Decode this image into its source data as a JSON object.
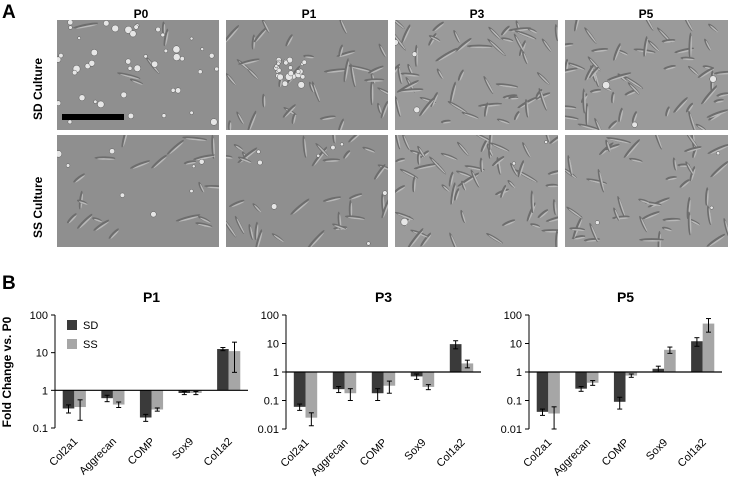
{
  "panel_labels": {
    "a": "A",
    "b": "B"
  },
  "micrographs": {
    "columns": [
      "P0",
      "P1",
      "P3",
      "P5"
    ],
    "rows": [
      "SD Culture",
      "SS Culture"
    ]
  },
  "colors": {
    "sd": "#3a3a3a",
    "ss": "#a6a6a6",
    "axis": "#000000",
    "micro_bg": "#8c8c8c"
  },
  "legend": {
    "sd": "SD",
    "ss": "SS"
  },
  "shared_ylabel": "Fold Change vs. P0",
  "chart_data": [
    {
      "type": "bar",
      "title": "P1",
      "categories": [
        "Col2a1",
        "Aggrecan",
        "COMP",
        "Sox9",
        "Col1a2"
      ],
      "ylabel": "Fold Change vs. P0",
      "yscale": "log",
      "ylim": [
        0.1,
        100
      ],
      "yticks": [
        "0.1",
        "1",
        "10",
        "100"
      ],
      "baseline": 1,
      "legend": "top-left",
      "series": [
        {
          "name": "SD",
          "values": [
            0.33,
            0.62,
            0.19,
            0.85,
            12.5
          ],
          "errors": [
            0.08,
            0.12,
            0.04,
            0.08,
            1.2
          ]
        },
        {
          "name": "SS",
          "values": [
            0.36,
            0.42,
            0.31,
            0.85,
            11
          ],
          "errors": [
            0.2,
            0.07,
            0.03,
            0.08,
            8
          ]
        }
      ]
    },
    {
      "type": "bar",
      "title": "P3",
      "categories": [
        "Col2a1",
        "Aggrecan",
        "COMP",
        "Sox9",
        "Col1a2"
      ],
      "yscale": "log",
      "ylim": [
        0.01,
        100
      ],
      "yticks": [
        "0.01",
        "0.1",
        "1",
        "10",
        "100"
      ],
      "baseline": 1,
      "series": [
        {
          "name": "SD",
          "values": [
            0.06,
            0.25,
            0.18,
            0.7,
            9.5
          ],
          "errors": [
            0.015,
            0.06,
            0.08,
            0.15,
            3
          ]
        },
        {
          "name": "SS",
          "values": [
            0.025,
            0.18,
            0.33,
            0.3,
            2.0
          ],
          "errors": [
            0.012,
            0.08,
            0.15,
            0.06,
            0.6
          ]
        }
      ]
    },
    {
      "type": "bar",
      "title": "P5",
      "categories": [
        "Col2a1",
        "Aggrecan",
        "COMP",
        "Sox9",
        "Col1a2"
      ],
      "yscale": "log",
      "ylim": [
        0.01,
        100
      ],
      "yticks": [
        "0.01",
        "0.1",
        "1",
        "10",
        "100"
      ],
      "baseline": 1,
      "series": [
        {
          "name": "SD",
          "values": [
            0.04,
            0.26,
            0.09,
            1.3,
            12
          ],
          "errors": [
            0.01,
            0.05,
            0.04,
            0.3,
            4
          ]
        },
        {
          "name": "SS",
          "values": [
            0.035,
            0.42,
            0.75,
            6,
            50
          ],
          "errors": [
            0.025,
            0.08,
            0.1,
            1.5,
            25
          ]
        }
      ]
    }
  ]
}
